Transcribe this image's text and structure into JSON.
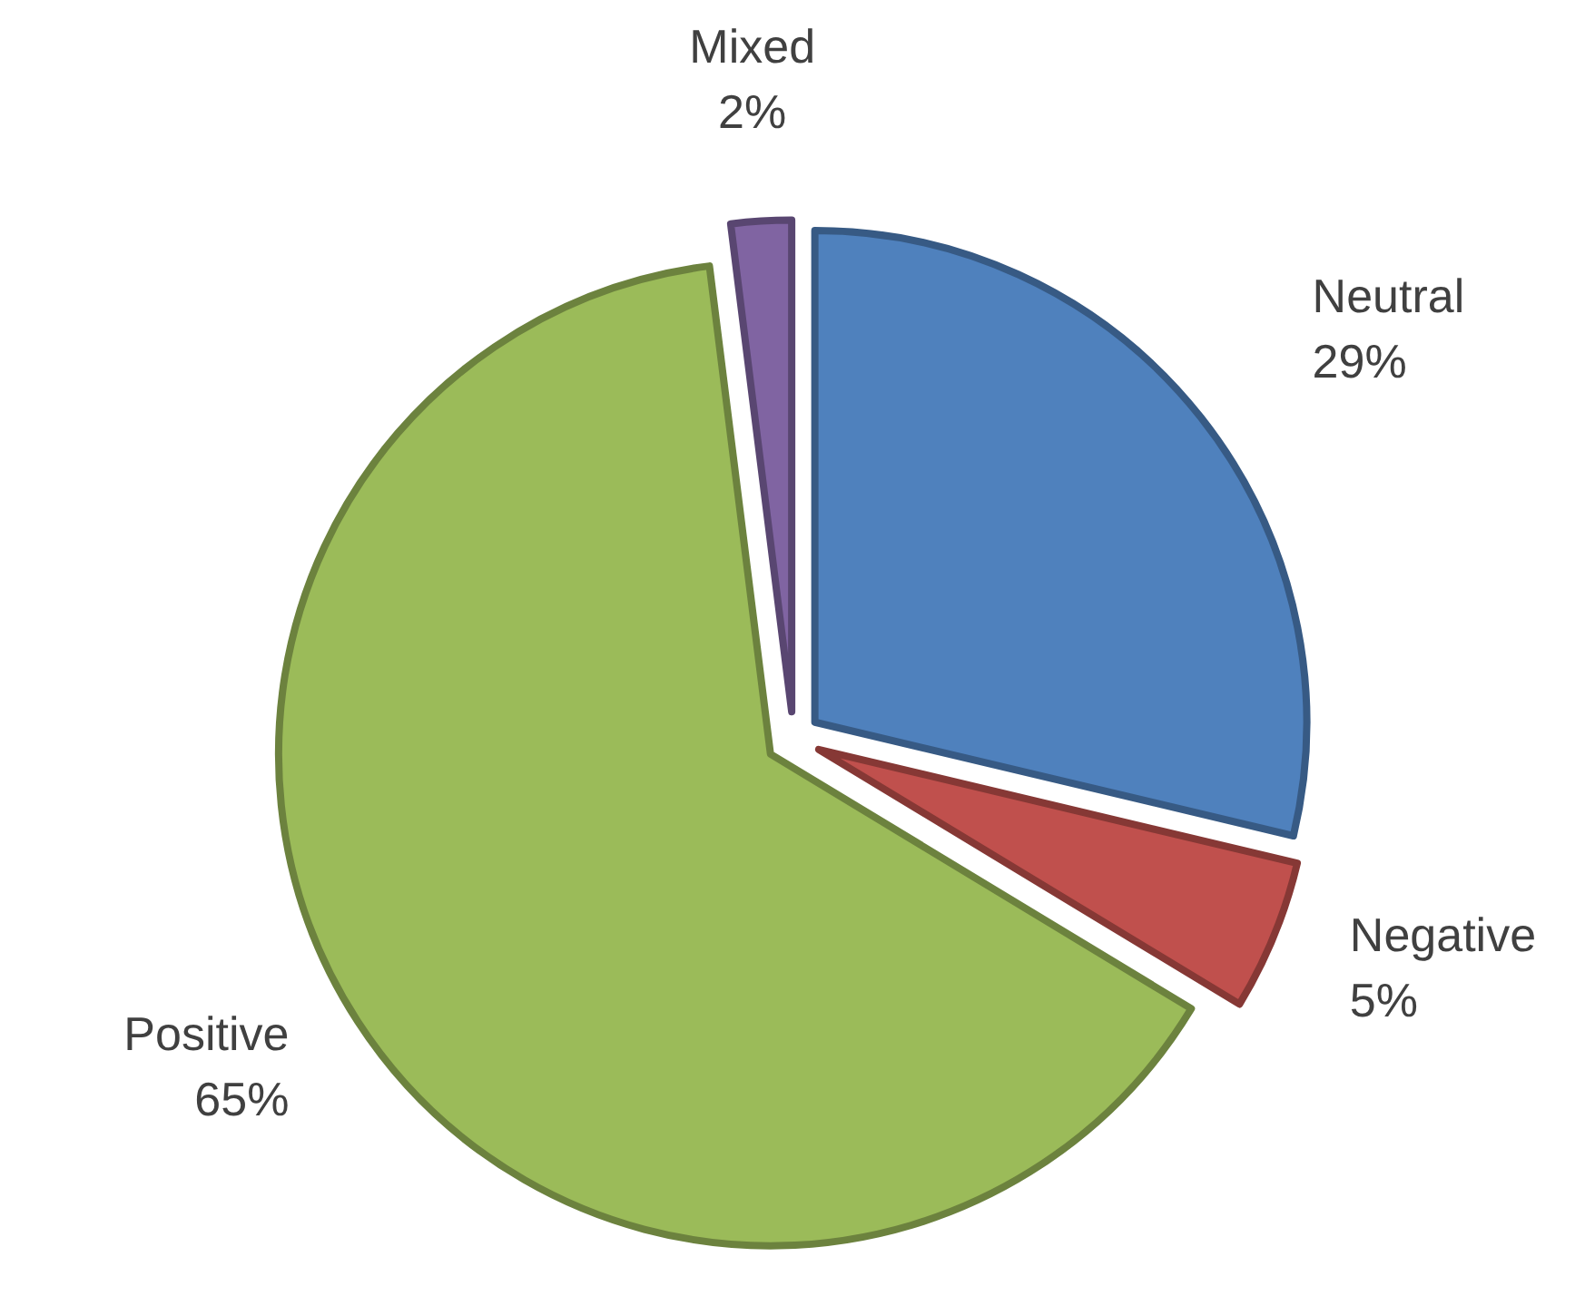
{
  "chart_data": {
    "type": "pie",
    "categories": [
      "Neutral",
      "Negative",
      "Positive",
      "Mixed"
    ],
    "values": [
      29,
      5,
      65,
      2
    ],
    "value_labels": [
      "29%",
      "5%",
      "65%",
      "2%"
    ],
    "colors": [
      "#4f81bd",
      "#c0504d",
      "#9bbb59",
      "#8064a2"
    ]
  }
}
